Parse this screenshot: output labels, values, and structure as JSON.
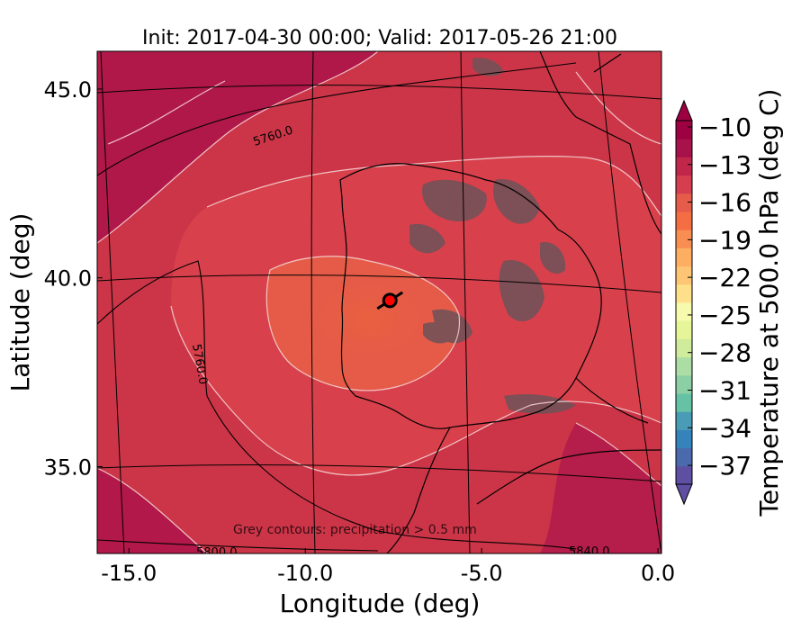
{
  "chart_data": {
    "type": "heatmap",
    "title": "Init: 2017-04-30 00:00; Valid: 2017-05-26 21:00",
    "xlabel": "Longitude (deg)",
    "ylabel": "Latitude (deg)",
    "x_ticks": [
      "-15.0",
      "-10.0",
      "-5.0",
      "0.0"
    ],
    "x_tick_values": [
      -15,
      -10,
      -5,
      0
    ],
    "y_ticks": [
      "35.0",
      "40.0",
      "45.0"
    ],
    "y_tick_values": [
      35,
      40,
      45
    ],
    "xlim": [
      -15.9,
      0.1
    ],
    "ylim": [
      32.7,
      46.0
    ],
    "grid": true,
    "colorbar": {
      "label": "Temperature at 500.0 hPa (deg C)",
      "range": [
        -38.5,
        -9.5
      ],
      "ticks": [
        "−10",
        "−13",
        "−16",
        "−19",
        "−22",
        "−25",
        "−28",
        "−31",
        "−34",
        "−37"
      ],
      "tick_values": [
        -10,
        -13,
        -16,
        -19,
        -22,
        -25,
        -28,
        -31,
        -34,
        -37
      ],
      "colors": [
        "#5e4fa2",
        "#4b69ad",
        "#3682ba",
        "#4a9bb5",
        "#66c2a5",
        "#8ccfa4",
        "#abdda4",
        "#cfeb9c",
        "#e6f598",
        "#f5faac",
        "#fee08b",
        "#fdc574",
        "#fdae61",
        "#f98e52",
        "#f46d43",
        "#e55c4a",
        "#d53e4f",
        "#c1274a",
        "#a8124a",
        "#9e0142"
      ]
    },
    "contour_labels": [
      {
        "text": "5760.0"
      },
      {
        "text": "5760.0"
      },
      {
        "text": "5800.0"
      },
      {
        "text": "5840.0"
      }
    ],
    "annotation": "Grey contours: precipitation > 0.5 mm",
    "marker": {
      "lon": -7.6,
      "lat": 39.4
    }
  }
}
